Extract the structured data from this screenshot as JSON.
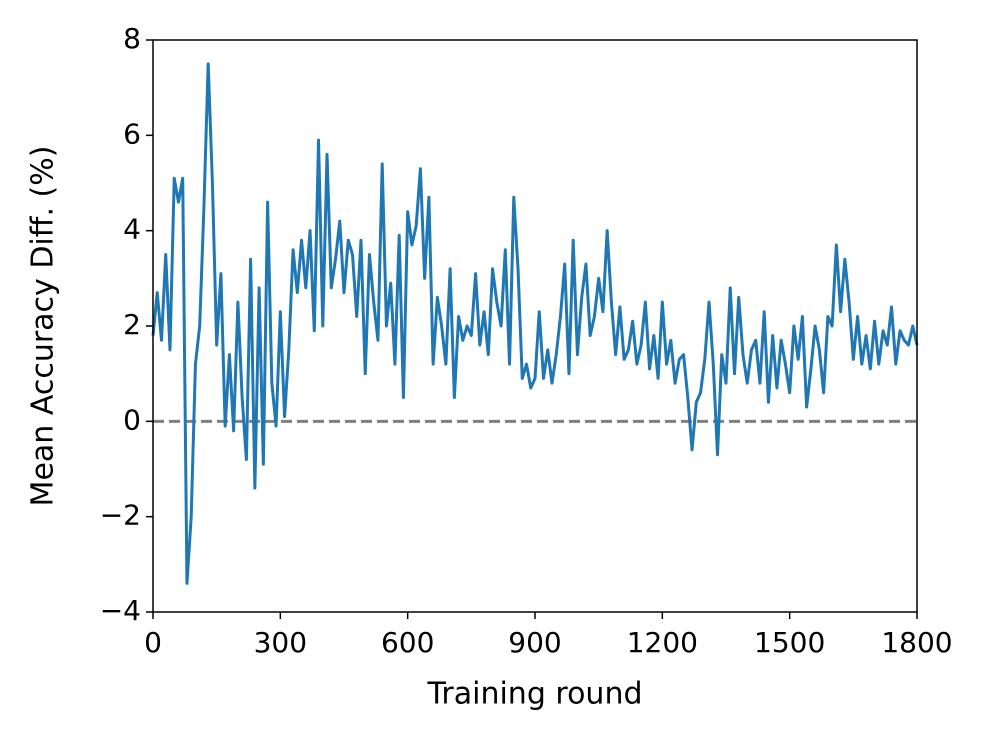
{
  "chart_data": {
    "type": "line",
    "xlabel": "Training round",
    "ylabel": "Mean Accuracy Diff. (%)",
    "x": [
      0,
      10,
      20,
      30,
      40,
      50,
      60,
      70,
      80,
      90,
      100,
      110,
      120,
      130,
      140,
      150,
      160,
      170,
      180,
      190,
      200,
      210,
      220,
      230,
      240,
      250,
      260,
      270,
      280,
      290,
      300,
      310,
      320,
      330,
      340,
      350,
      360,
      370,
      380,
      390,
      400,
      410,
      420,
      430,
      440,
      450,
      460,
      470,
      480,
      490,
      500,
      510,
      520,
      530,
      540,
      550,
      560,
      570,
      580,
      590,
      600,
      610,
      620,
      630,
      640,
      650,
      660,
      670,
      680,
      690,
      700,
      710,
      720,
      730,
      740,
      750,
      760,
      770,
      780,
      790,
      800,
      810,
      820,
      830,
      840,
      850,
      860,
      870,
      880,
      890,
      900,
      910,
      920,
      930,
      940,
      950,
      960,
      970,
      980,
      990,
      1000,
      1010,
      1020,
      1030,
      1040,
      1050,
      1060,
      1070,
      1080,
      1090,
      1100,
      1110,
      1120,
      1130,
      1140,
      1150,
      1160,
      1170,
      1180,
      1190,
      1200,
      1210,
      1220,
      1230,
      1240,
      1250,
      1260,
      1270,
      1280,
      1290,
      1300,
      1310,
      1320,
      1330,
      1340,
      1350,
      1360,
      1370,
      1380,
      1390,
      1400,
      1410,
      1420,
      1430,
      1440,
      1450,
      1460,
      1470,
      1480,
      1490,
      1500,
      1510,
      1520,
      1530,
      1540,
      1550,
      1560,
      1570,
      1580,
      1590,
      1600,
      1610,
      1620,
      1630,
      1640,
      1650,
      1660,
      1670,
      1680,
      1690,
      1700,
      1710,
      1720,
      1730,
      1740,
      1750,
      1760,
      1770,
      1780,
      1790,
      1800
    ],
    "series": [
      {
        "color": "#1f77b4",
        "values": [
          1.8,
          2.7,
          1.7,
          3.5,
          1.5,
          5.1,
          4.6,
          5.1,
          -3.4,
          -2.0,
          1.2,
          2.0,
          4.5,
          7.5,
          5.0,
          1.6,
          3.1,
          -0.1,
          1.4,
          -0.2,
          2.5,
          0.5,
          -0.8,
          3.4,
          -1.4,
          2.8,
          -0.9,
          4.6,
          0.8,
          -0.1,
          2.3,
          0.1,
          1.5,
          3.6,
          2.7,
          3.8,
          2.8,
          4.0,
          1.9,
          5.9,
          2.0,
          5.6,
          2.8,
          3.4,
          4.2,
          2.7,
          3.8,
          3.5,
          2.2,
          3.8,
          1.0,
          3.5,
          2.5,
          1.7,
          5.4,
          2.0,
          2.9,
          1.2,
          3.9,
          0.5,
          4.4,
          3.7,
          4.1,
          5.3,
          3.0,
          4.7,
          1.2,
          2.6,
          2.0,
          1.2,
          3.2,
          0.5,
          2.2,
          1.7,
          2.0,
          1.8,
          3.1,
          1.6,
          2.3,
          1.4,
          3.2,
          2.5,
          2.0,
          3.6,
          1.2,
          4.7,
          3.2,
          0.9,
          1.2,
          0.7,
          0.9,
          2.3,
          0.9,
          1.5,
          0.8,
          1.4,
          2.2,
          3.3,
          1.0,
          3.8,
          1.4,
          2.6,
          3.3,
          1.8,
          2.2,
          3.0,
          2.3,
          4.0,
          2.5,
          1.4,
          2.4,
          1.3,
          1.5,
          2.1,
          1.2,
          1.6,
          2.5,
          1.1,
          1.8,
          0.9,
          2.5,
          1.2,
          1.7,
          0.8,
          1.3,
          1.4,
          0.5,
          -0.6,
          0.4,
          0.6,
          1.3,
          2.5,
          1.2,
          -0.7,
          1.4,
          0.8,
          2.8,
          1.0,
          2.6,
          1.4,
          0.8,
          1.5,
          1.7,
          0.8,
          2.3,
          0.4,
          1.8,
          0.7,
          1.7,
          1.2,
          0.6,
          2.0,
          1.3,
          2.2,
          0.3,
          1.1,
          2.0,
          1.5,
          0.6,
          2.2,
          2.0,
          3.7,
          2.3,
          3.4,
          2.5,
          1.3,
          2.2,
          1.2,
          1.8,
          1.1,
          2.1,
          1.2,
          1.9,
          1.6,
          2.4,
          1.2,
          1.9,
          1.7,
          1.6,
          2.0,
          1.6
        ]
      }
    ],
    "hline": 0,
    "hline_color": "#808080",
    "xlim": [
      0,
      1800
    ],
    "xticks": [
      0,
      300,
      600,
      900,
      1200,
      1500,
      1800
    ],
    "ylim": [
      -4,
      8
    ],
    "yticks": [
      {
        "value": -4,
        "label": "−4"
      },
      {
        "value": -2,
        "label": "−2"
      },
      0,
      2,
      4,
      6,
      8
    ]
  }
}
